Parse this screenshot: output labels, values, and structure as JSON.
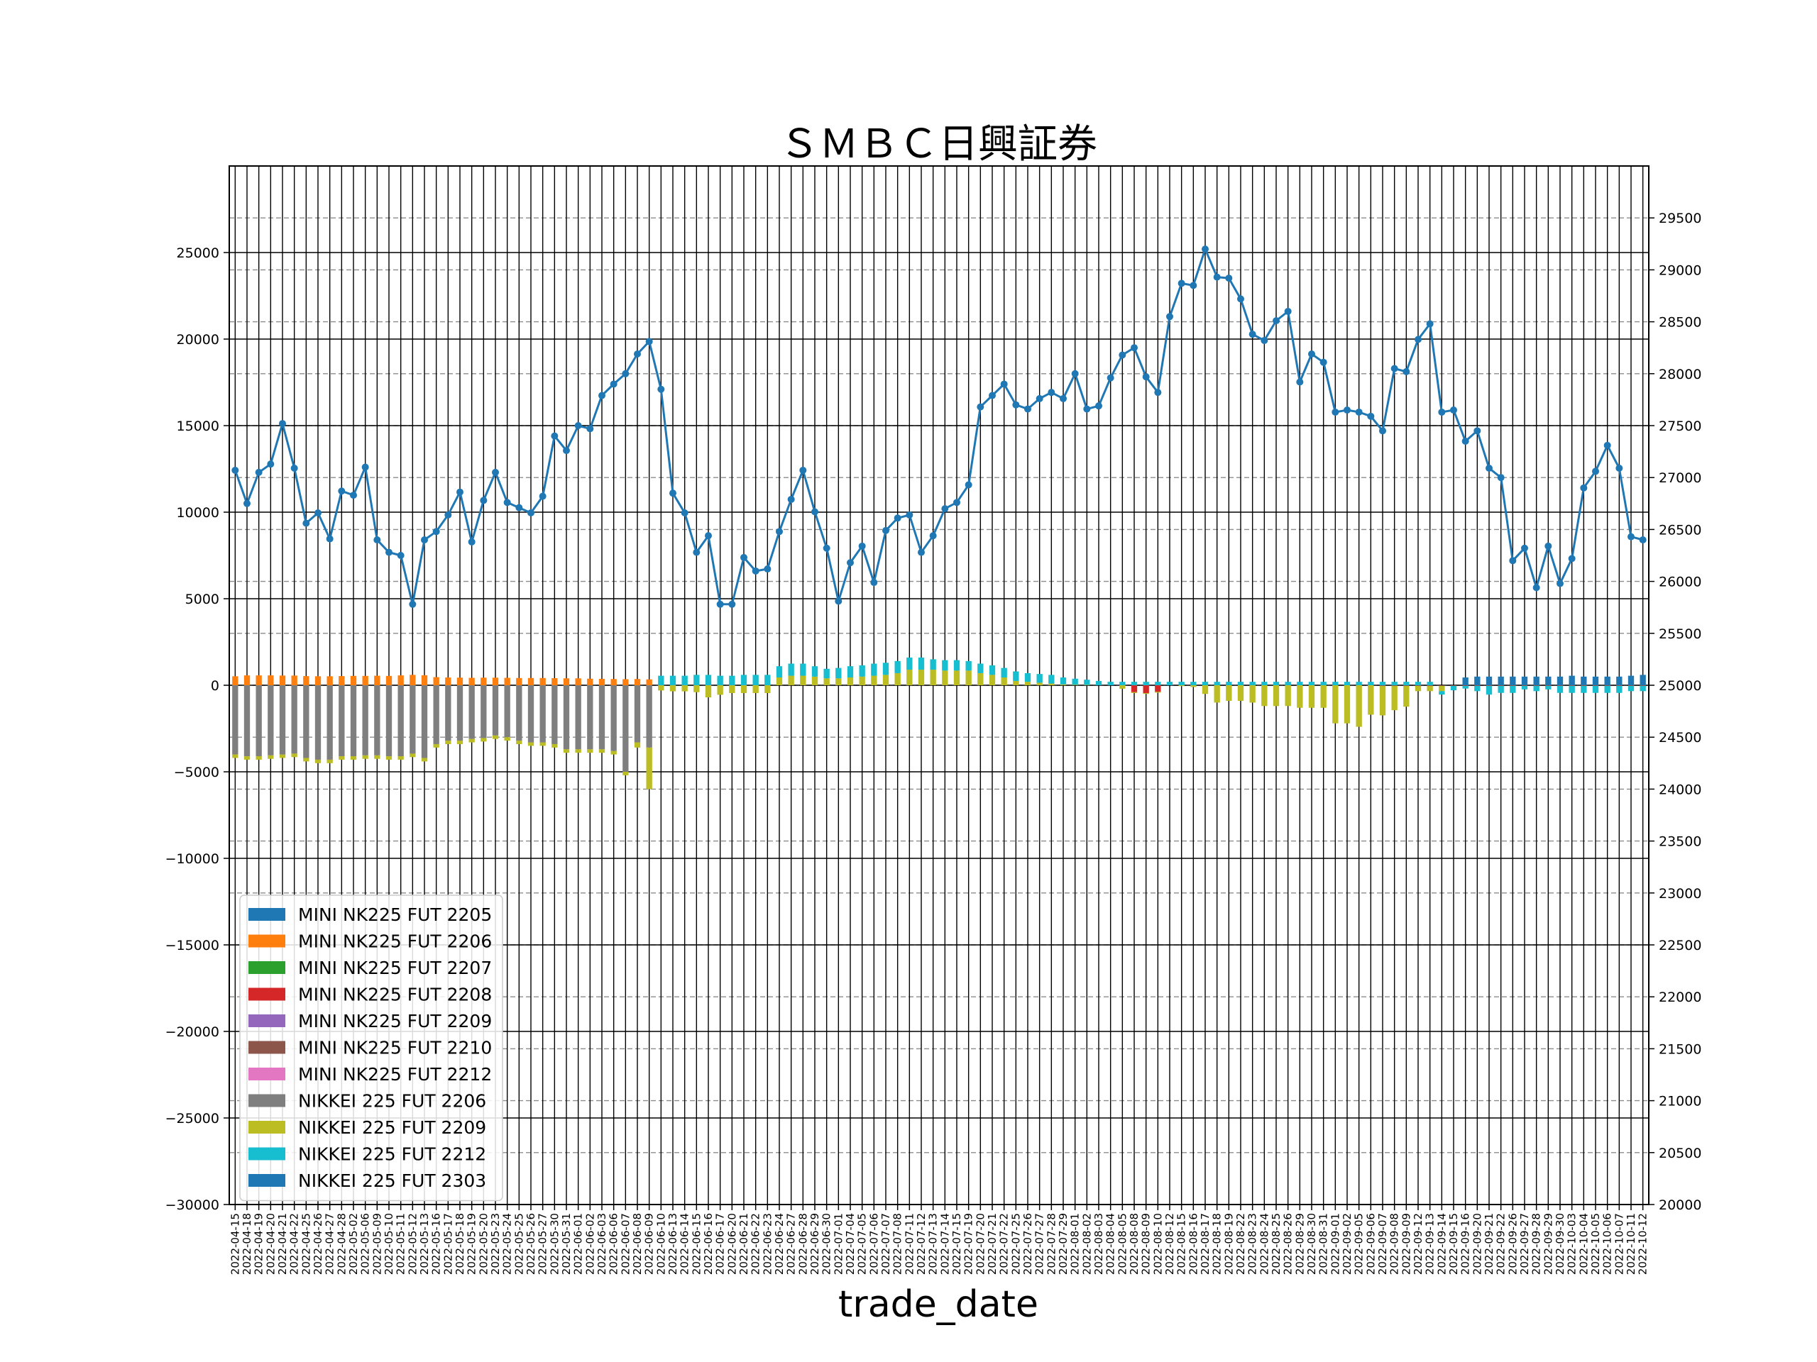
{
  "chart_data": {
    "type": "bar+line",
    "title": "ＳＭＢＣ日興証券",
    "xlabel": "trade_date",
    "left_axis": {
      "ylim": [
        -30000,
        30000
      ],
      "ticks": [
        -30000,
        -25000,
        -20000,
        -15000,
        -10000,
        -5000,
        0,
        5000,
        10000,
        15000,
        20000,
        25000
      ]
    },
    "right_axis": {
      "ylim": [
        20000,
        30000
      ],
      "ticks": [
        20000,
        20500,
        21000,
        21500,
        22000,
        22500,
        23000,
        23500,
        24000,
        24500,
        25000,
        25500,
        26000,
        26500,
        27000,
        27500,
        28000,
        28500,
        29000,
        29500
      ]
    },
    "grid": true,
    "legend_placement": "lower-left",
    "dates": [
      "2022-04-15",
      "2022-04-18",
      "2022-04-19",
      "2022-04-20",
      "2022-04-21",
      "2022-04-22",
      "2022-04-25",
      "2022-04-26",
      "2022-04-27",
      "2022-04-28",
      "2022-05-02",
      "2022-05-06",
      "2022-05-09",
      "2022-05-10",
      "2022-05-11",
      "2022-05-12",
      "2022-05-13",
      "2022-05-16",
      "2022-05-17",
      "2022-05-18",
      "2022-05-19",
      "2022-05-20",
      "2022-05-23",
      "2022-05-24",
      "2022-05-25",
      "2022-05-26",
      "2022-05-27",
      "2022-05-30",
      "2022-05-31",
      "2022-06-01",
      "2022-06-02",
      "2022-06-03",
      "2022-06-06",
      "2022-06-07",
      "2022-06-08",
      "2022-06-09",
      "2022-06-10",
      "2022-06-13",
      "2022-06-14",
      "2022-06-15",
      "2022-06-16",
      "2022-06-17",
      "2022-06-20",
      "2022-06-21",
      "2022-06-22",
      "2022-06-23",
      "2022-06-24",
      "2022-06-27",
      "2022-06-28",
      "2022-06-29",
      "2022-06-30",
      "2022-07-01",
      "2022-07-04",
      "2022-07-05",
      "2022-07-06",
      "2022-07-07",
      "2022-07-08",
      "2022-07-11",
      "2022-07-12",
      "2022-07-13",
      "2022-07-14",
      "2022-07-15",
      "2022-07-19",
      "2022-07-20",
      "2022-07-21",
      "2022-07-22",
      "2022-07-25",
      "2022-07-26",
      "2022-07-27",
      "2022-07-28",
      "2022-07-29",
      "2022-08-01",
      "2022-08-02",
      "2022-08-03",
      "2022-08-04",
      "2022-08-05",
      "2022-08-08",
      "2022-08-09",
      "2022-08-10",
      "2022-08-12",
      "2022-08-15",
      "2022-08-16",
      "2022-08-17",
      "2022-08-18",
      "2022-08-19",
      "2022-08-22",
      "2022-08-23",
      "2022-08-24",
      "2022-08-25",
      "2022-08-26",
      "2022-08-29",
      "2022-08-30",
      "2022-08-31",
      "2022-09-01",
      "2022-09-02",
      "2022-09-05",
      "2022-09-06",
      "2022-09-07",
      "2022-09-08",
      "2022-09-09",
      "2022-09-12",
      "2022-09-13",
      "2022-09-14",
      "2022-09-15",
      "2022-09-16",
      "2022-09-20",
      "2022-09-21",
      "2022-09-22",
      "2022-09-26",
      "2022-09-27",
      "2022-09-28",
      "2022-09-29",
      "2022-09-30",
      "2022-10-03",
      "2022-10-04",
      "2022-10-05",
      "2022-10-06",
      "2022-10-07",
      "2022-10-11",
      "2022-10-12"
    ],
    "line_series": {
      "axis": "right",
      "color": "#1f77b4",
      "values": [
        27070,
        26750,
        27050,
        27130,
        27520,
        27090,
        26560,
        26660,
        26410,
        26870,
        26830,
        27100,
        26400,
        26280,
        26250,
        25780,
        26400,
        26480,
        26640,
        26860,
        26380,
        26780,
        27050,
        26760,
        26710,
        26660,
        26820,
        27400,
        27260,
        27500,
        27470,
        27790,
        27900,
        28000,
        28190,
        28310,
        27850,
        26850,
        26660,
        26280,
        26440,
        25780,
        25780,
        26230,
        26100,
        26120,
        26480,
        26790,
        27070,
        26670,
        26320,
        25810,
        26180,
        26340,
        25990,
        26490,
        26610,
        26640,
        26280,
        26440,
        26700,
        26760,
        26930,
        27680,
        27790,
        27900,
        27700,
        27660,
        27760,
        27820,
        27760,
        28000,
        27660,
        27690,
        27960,
        28180,
        28250,
        27970,
        27820,
        28550,
        28870,
        28850,
        29200,
        28930,
        28920,
        28720,
        28380,
        28320,
        28510,
        28600,
        27920,
        28190,
        28110,
        27630,
        27650,
        27630,
        27590,
        27450,
        28050,
        28020,
        28330,
        28480,
        27630,
        27650,
        27350,
        27450,
        27090,
        27000,
        26200,
        26320,
        25940,
        26340,
        25980,
        26220,
        26900,
        27060,
        27310,
        27090,
        26430,
        26400
      ]
    },
    "bar_series": [
      {
        "name": "MINI NK225 FUT 2205",
        "color": "#1f77b4",
        "values": []
      },
      {
        "name": "MINI NK225 FUT 2206",
        "color": "#ff7f0e",
        "start": 0,
        "values": [
          520,
          570,
          570,
          570,
          560,
          560,
          530,
          520,
          520,
          530,
          540,
          540,
          550,
          540,
          570,
          600,
          580,
          470,
          450,
          440,
          430,
          440,
          440,
          430,
          420,
          420,
          420,
          410,
          400,
          400,
          380,
          370,
          360,
          350,
          360,
          340
        ]
      },
      {
        "name": "MINI NK225 FUT 2207",
        "color": "#2ca02c",
        "values": []
      },
      {
        "name": "MINI NK225 FUT 2208",
        "color": "#d62728",
        "start": 76,
        "values": [
          -400,
          -450,
          -380
        ]
      },
      {
        "name": "MINI NK225 FUT 2209",
        "color": "#9467bd",
        "values": []
      },
      {
        "name": "MINI NK225 FUT 2210",
        "color": "#8c564b",
        "start": 97,
        "values": [
          -40,
          -40,
          -40,
          -40,
          -40,
          -40,
          -40,
          -40,
          -40,
          -40,
          -40,
          -40,
          -40,
          -40,
          -40,
          -40,
          -40,
          -40,
          -40,
          -40,
          -40,
          -40,
          -40
        ]
      },
      {
        "name": "MINI NK225 FUT 2212",
        "color": "#e377c2",
        "values": []
      },
      {
        "name": "NIKKEI 225 FUT 2206",
        "color": "#7f7f7f",
        "start": 0,
        "values": [
          -4000,
          -4100,
          -4100,
          -4050,
          -4000,
          -3950,
          -4200,
          -4300,
          -4300,
          -4100,
          -4100,
          -4050,
          -4050,
          -4100,
          -4100,
          -3950,
          -4200,
          -3400,
          -3200,
          -3200,
          -3100,
          -3050,
          -2900,
          -3000,
          -3200,
          -3300,
          -3300,
          -3400,
          -3700,
          -3700,
          -3700,
          -3700,
          -3800,
          -5000,
          -3300,
          -3600
        ]
      },
      {
        "name": "NIKKEI 225 FUT 2209",
        "color": "#bcbd22",
        "start": 0,
        "values": [
          -200,
          -200,
          -200,
          -200,
          -200,
          -200,
          -200,
          -200,
          -200,
          -200,
          -200,
          -200,
          -200,
          -200,
          -200,
          -200,
          -200,
          -200,
          -200,
          -200,
          -200,
          -200,
          -200,
          -200,
          -200,
          -200,
          -200,
          -200,
          -200,
          -200,
          -200,
          -200,
          -200,
          -200,
          -300,
          -2400,
          -300,
          -350,
          -350,
          -400,
          -700,
          -550,
          -450,
          -450,
          -450,
          -450,
          450,
          550,
          550,
          500,
          400,
          400,
          450,
          500,
          550,
          600,
          700,
          900,
          900,
          900,
          850,
          850,
          850,
          700,
          600,
          450,
          250,
          200,
          150,
          100,
          50,
          30,
          20,
          0,
          0,
          -200,
          -50,
          -50,
          -50,
          0,
          -50,
          -100,
          -500,
          -1000,
          -900,
          -900,
          -1000,
          -1200,
          -1200,
          -1200,
          -1300,
          -1300,
          -1300,
          -2200,
          -2200,
          -2400,
          -1700,
          -1700,
          -1400,
          -1200,
          -300,
          -300,
          -300,
          0,
          0,
          0,
          0,
          0,
          0,
          0,
          0,
          0,
          0,
          0,
          0,
          0,
          0,
          0,
          0,
          0
        ]
      },
      {
        "name": "NIKKEI 225 FUT 2212",
        "color": "#17becf",
        "start": 36,
        "values": [
          550,
          550,
          550,
          600,
          600,
          550,
          550,
          600,
          600,
          600,
          650,
          700,
          700,
          600,
          550,
          600,
          650,
          650,
          700,
          700,
          700,
          700,
          700,
          600,
          600,
          600,
          550,
          550,
          550,
          550,
          550,
          500,
          500,
          500,
          400,
          350,
          300,
          250,
          200,
          200,
          200,
          200,
          200,
          200,
          200,
          200,
          200,
          200,
          200,
          200,
          200,
          200,
          200,
          200,
          200,
          200,
          200,
          200,
          200,
          200,
          200,
          200,
          200,
          200,
          200,
          200,
          -200,
          -250,
          -150,
          -300,
          -500,
          -400,
          -400,
          -200,
          -300,
          -200,
          -400,
          -400,
          -400,
          -400,
          -400,
          -400,
          -300,
          -300,
          -200,
          -200,
          -200,
          -200,
          -200,
          -200,
          -200,
          -200
        ]
      },
      {
        "name": "NIKKEI 225 FUT 2303",
        "color": "#1f77b4",
        "start": 104,
        "values": [
          450,
          500,
          500,
          500,
          500,
          500,
          500,
          500,
          500,
          550,
          500,
          500,
          500,
          500,
          550,
          600
        ]
      }
    ]
  }
}
